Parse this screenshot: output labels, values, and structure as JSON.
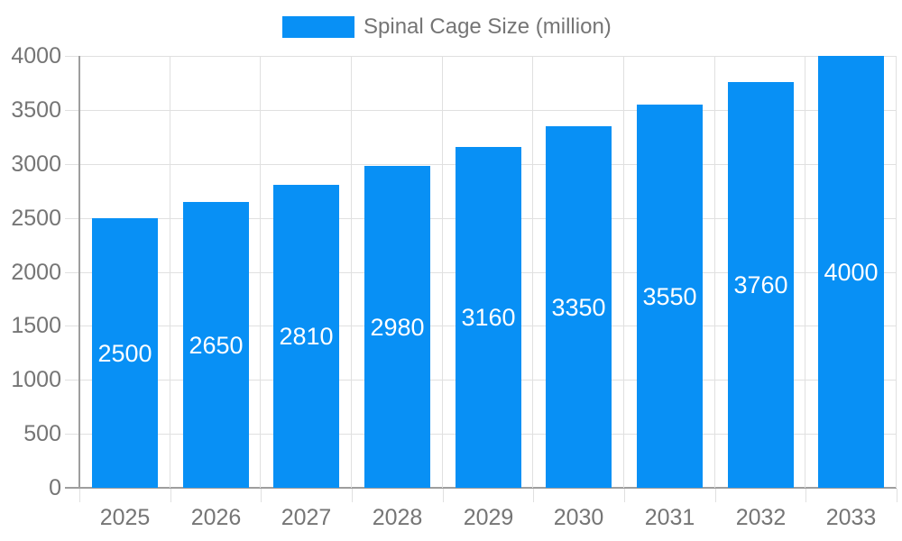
{
  "legend": {
    "label": "Spinal Cage Size (million)"
  },
  "chart_data": {
    "type": "bar",
    "title": "",
    "xlabel": "",
    "ylabel": "",
    "categories": [
      "2025",
      "2026",
      "2027",
      "2028",
      "2029",
      "2030",
      "2031",
      "2032",
      "2033"
    ],
    "series": [
      {
        "name": "Spinal Cage Size (million)",
        "values": [
          2500,
          2650,
          2810,
          2980,
          3160,
          3350,
          3550,
          3760,
          4000
        ]
      }
    ],
    "bar_value_labels_visible": true,
    "ylim": [
      0,
      4000
    ],
    "yticks": [
      0,
      500,
      1000,
      1500,
      2000,
      2500,
      3000,
      3500,
      4000
    ],
    "grid": true,
    "legend_position": "top-center",
    "colors": {
      "bar": "#0890f5",
      "bar_label_text": "#ffffff",
      "axis_text": "#757575",
      "grid_line": "#e0e0e0",
      "axis_line": "#9e9e9e",
      "background": "#ffffff"
    }
  }
}
